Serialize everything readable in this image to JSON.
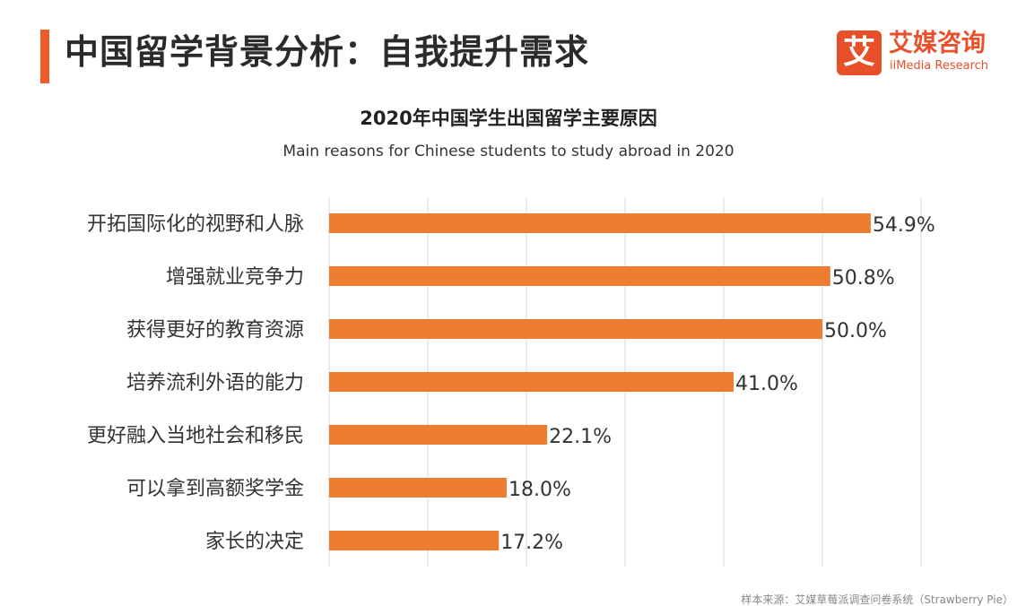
{
  "header": {
    "title": "中国留学背景分析：自我提升需求",
    "accent_color": "#f05a28"
  },
  "logo": {
    "mark": "艾",
    "name_cn": "艾媒咨询",
    "name_en": "iiMedia Research",
    "color": "#e8502a"
  },
  "chart_data": {
    "type": "bar",
    "orientation": "horizontal",
    "title": "2020年中国学生出国留学主要原因",
    "subtitle": "Main reasons for Chinese students to study abroad in 2020",
    "categories": [
      "开拓国际化的视野和人脉",
      "增强就业竞争力",
      "获得更好的教育资源",
      "培养流利外语的能力",
      "更好融入当地社会和移民",
      "可以拿到高额奖学金",
      "家长的决定"
    ],
    "values": [
      54.9,
      50.8,
      50.0,
      41.0,
      22.1,
      18.0,
      17.2
    ],
    "value_labels": [
      "54.9%",
      "50.8%",
      "50.0%",
      "41.0%",
      "22.1%",
      "18.0%",
      "17.2%"
    ],
    "xlim": [
      0,
      60
    ],
    "grid": "vertical",
    "bar_color": "#ed7d31"
  },
  "footer": {
    "source": "样本来源：艾媒草莓派调查问卷系统（Strawberry Pie）"
  }
}
